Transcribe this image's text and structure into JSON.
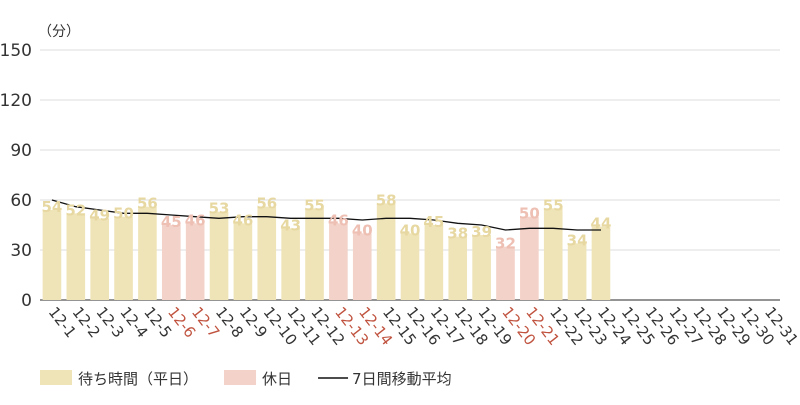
{
  "colors": {
    "weekday_bar": "#efe4b8",
    "holiday_bar": "#f3d2c9",
    "weekday_label": "#e7d8a2",
    "holiday_label": "#eebfb3",
    "weekday_xlabel": "#333333",
    "holiday_xlabel": "#c0533f",
    "moving_average_line": "#111111",
    "gridline": "#dddddd",
    "axis": "#555555"
  },
  "chart_data": {
    "type": "bar",
    "unit_label": "（分）",
    "ylim": [
      0,
      150
    ],
    "yticks": [
      0,
      30,
      60,
      90,
      120,
      150
    ],
    "grid": true,
    "legend_position": "bottom-left",
    "categories": [
      "12-1",
      "12-2",
      "12-3",
      "12-4",
      "12-5",
      "12-6",
      "12-7",
      "12-8",
      "12-9",
      "12-10",
      "12-11",
      "12-12",
      "12-13",
      "12-14",
      "12-15",
      "12-16",
      "12-17",
      "12-18",
      "12-19",
      "12-20",
      "12-21",
      "12-22",
      "12-23",
      "12-24",
      "12-25",
      "12-26",
      "12-27",
      "12-28",
      "12-29",
      "12-30",
      "12-31"
    ],
    "day_type": [
      "weekday",
      "weekday",
      "weekday",
      "weekday",
      "weekday",
      "holiday",
      "holiday",
      "weekday",
      "weekday",
      "weekday",
      "weekday",
      "weekday",
      "holiday",
      "holiday",
      "weekday",
      "weekday",
      "weekday",
      "weekday",
      "weekday",
      "holiday",
      "holiday",
      "weekday",
      "weekday",
      "weekday",
      null,
      null,
      null,
      null,
      null,
      null,
      null
    ],
    "series": [
      {
        "name": "待ち時間（平日）",
        "values": [
          54,
          52,
          49,
          50,
          56,
          null,
          null,
          53,
          46,
          56,
          43,
          55,
          null,
          null,
          58,
          40,
          45,
          38,
          39,
          null,
          null,
          55,
          34,
          44,
          null,
          null,
          null,
          null,
          null,
          null,
          null
        ]
      },
      {
        "name": "休日",
        "values": [
          null,
          null,
          null,
          null,
          null,
          45,
          46,
          null,
          null,
          null,
          null,
          null,
          46,
          40,
          null,
          null,
          null,
          null,
          null,
          32,
          50,
          null,
          null,
          null,
          null,
          null,
          null,
          null,
          null,
          null,
          null
        ]
      },
      {
        "name": "7日間移動平均",
        "type": "line",
        "values": [
          60,
          56,
          54,
          52,
          52,
          51,
          50,
          49,
          50,
          50,
          49,
          49,
          49,
          48,
          49,
          49,
          48,
          46,
          45,
          42,
          43,
          43,
          42,
          42,
          null,
          null,
          null,
          null,
          null,
          null,
          null
        ]
      }
    ]
  },
  "legend": [
    {
      "label": "待ち時間（平日）",
      "kind": "box",
      "color": "#efe4b8"
    },
    {
      "label": "休日",
      "kind": "box",
      "color": "#f3d2c9"
    },
    {
      "label": "7日間移動平均",
      "kind": "line",
      "color": "#111111"
    }
  ]
}
